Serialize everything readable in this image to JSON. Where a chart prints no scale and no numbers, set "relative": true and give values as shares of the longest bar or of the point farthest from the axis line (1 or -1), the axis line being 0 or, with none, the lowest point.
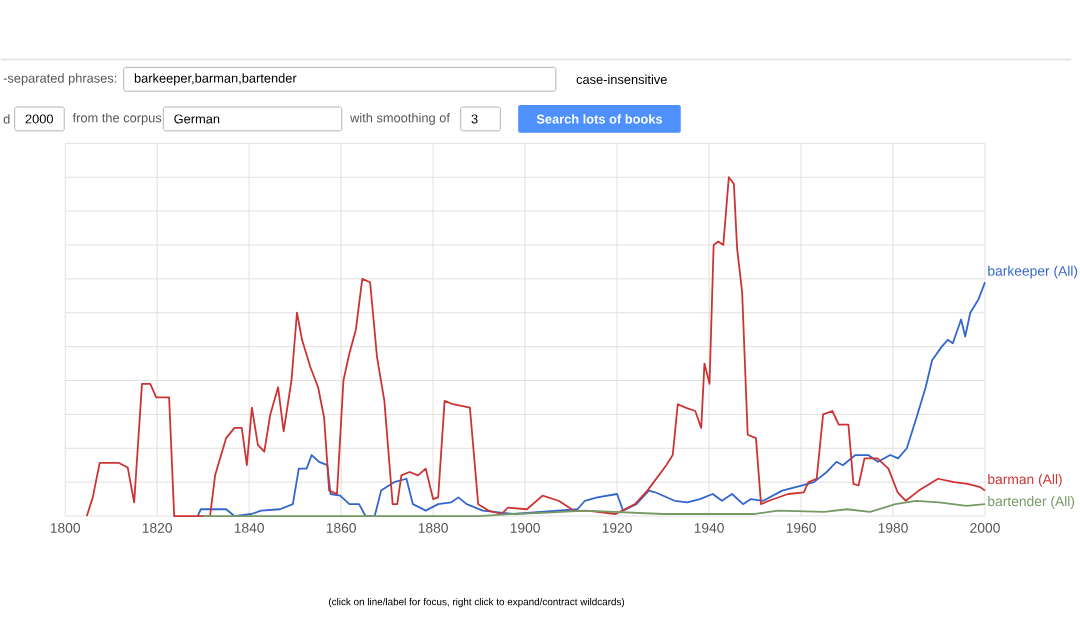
{
  "chart_data": {
    "type": "line",
    "relative": true,
    "grid": true,
    "xlim": [
      1800,
      2000
    ],
    "xticks": [
      1800,
      1820,
      1840,
      1860,
      1880,
      1900,
      1920,
      1940,
      1960,
      1980,
      2000
    ],
    "annotations": [
      "-separated phrases:",
      "barkeeper,barman,bartender",
      "case-insensitive",
      "d",
      "2000",
      "from the corpus",
      "German",
      "with smoothing of",
      "3",
      "Search lots of books",
      "(click on line/label for focus, right click to expand/contract wildcards)"
    ],
    "series": [
      {
        "name": "barkeeper (All)",
        "color": "#3366cc",
        "x": [
          1828.8,
          1829.5,
          1835,
          1836.8,
          1840.5,
          1842.6,
          1846.7,
          1849.5,
          1850.8,
          1852.5,
          1853.6,
          1855.2,
          1857,
          1857.7,
          1859.8,
          1861.8,
          1863.9,
          1865.3,
          1867.3,
          1868.7,
          1871.5,
          1874.2,
          1875.6,
          1878.4,
          1881.1,
          1883.9,
          1885.5,
          1887.3,
          1890.8,
          1897.6,
          1911.4,
          1913,
          1915.7,
          1920,
          1921.3,
          1924.2,
          1926.9,
          1928.3,
          1932.5,
          1935.3,
          1938,
          1940.8,
          1942.8,
          1945,
          1947.4,
          1949.1,
          1951.8,
          1955.9,
          1960.1,
          1962.8,
          1965.6,
          1967.7,
          1969.1,
          1971.8,
          1974.6,
          1976.7,
          1979.4,
          1981.1,
          1983,
          1985.1,
          1987.1,
          1988.5,
          1990.6,
          1991.9,
          1993,
          1994.8,
          1995.7,
          1996.8,
          1998.6,
          2000
        ],
        "values": [
          0,
          0.02,
          0.02,
          0,
          0.006,
          0.016,
          0.02,
          0.035,
          0.14,
          0.14,
          0.18,
          0.16,
          0.15,
          0.065,
          0.06,
          0.035,
          0.035,
          0,
          0,
          0.075,
          0.1,
          0.11,
          0.035,
          0.016,
          0.035,
          0.04,
          0.055,
          0.035,
          0.016,
          0.006,
          0.02,
          0.045,
          0.055,
          0.065,
          0.016,
          0.035,
          0.075,
          0.07,
          0.045,
          0.04,
          0.05,
          0.065,
          0.045,
          0.065,
          0.035,
          0.05,
          0.045,
          0.075,
          0.09,
          0.1,
          0.13,
          0.16,
          0.15,
          0.18,
          0.18,
          0.16,
          0.18,
          0.17,
          0.2,
          0.29,
          0.38,
          0.46,
          0.5,
          0.52,
          0.51,
          0.58,
          0.53,
          0.6,
          0.64,
          0.69
        ]
      },
      {
        "name": "barman (All)",
        "color": "#cc3333",
        "x": [
          1804.7,
          1806,
          1807.5,
          1811.6,
          1813.6,
          1815,
          1816.7,
          1818.5,
          1819.8,
          1822.6,
          1823.7,
          1831.5,
          1832.6,
          1835,
          1836.8,
          1838.4,
          1839.5,
          1840.6,
          1841.9,
          1843.3,
          1844.6,
          1846.3,
          1847.5,
          1849.2,
          1850.4,
          1851.5,
          1853.3,
          1855,
          1856.3,
          1857.4,
          1859.1,
          1860.5,
          1861.8,
          1863.2,
          1864.6,
          1866.3,
          1867.8,
          1869.4,
          1871.2,
          1872.2,
          1873.1,
          1874.9,
          1876.7,
          1878.4,
          1880,
          1881.1,
          1882.5,
          1884.3,
          1888,
          1889.8,
          1892.2,
          1894.9,
          1896.3,
          1900.4,
          1903.8,
          1907.3,
          1910.7,
          1914,
          1919.7,
          1923.9,
          1926.6,
          1930.7,
          1932.1,
          1933.2,
          1934.9,
          1937,
          1938.3,
          1939,
          1940.1,
          1941,
          1942,
          1943.1,
          1944.3,
          1945.4,
          1946.1,
          1947.2,
          1948.4,
          1950.2,
          1951.3,
          1953,
          1957.2,
          1960.6,
          1961.6,
          1963.4,
          1964.8,
          1966.8,
          1968.2,
          1970.3,
          1971.4,
          1972.5,
          1973.8,
          1976.6,
          1979,
          1981,
          1982.8,
          1985.6,
          1989.8,
          1993.3,
          1996.2,
          1999,
          2000
        ],
        "values": [
          0,
          0.055,
          0.157,
          0.157,
          0.143,
          0.04,
          0.39,
          0.39,
          0.35,
          0.35,
          0,
          0,
          0.12,
          0.23,
          0.26,
          0.26,
          0.15,
          0.32,
          0.21,
          0.19,
          0.3,
          0.38,
          0.25,
          0.4,
          0.6,
          0.52,
          0.44,
          0.38,
          0.29,
          0.075,
          0.065,
          0.4,
          0.48,
          0.55,
          0.7,
          0.69,
          0.47,
          0.34,
          0.035,
          0.035,
          0.12,
          0.13,
          0.12,
          0.14,
          0.05,
          0.055,
          0.34,
          0.33,
          0.32,
          0.035,
          0.015,
          0.006,
          0.025,
          0.02,
          0.06,
          0.045,
          0.015,
          0.015,
          0.006,
          0.035,
          0.075,
          0.15,
          0.18,
          0.33,
          0.32,
          0.31,
          0.26,
          0.45,
          0.39,
          0.8,
          0.81,
          0.8,
          1,
          0.98,
          0.79,
          0.66,
          0.24,
          0.23,
          0.035,
          0.045,
          0.065,
          0.07,
          0.1,
          0.11,
          0.3,
          0.31,
          0.27,
          0.27,
          0.095,
          0.09,
          0.17,
          0.17,
          0.14,
          0.07,
          0.045,
          0.075,
          0.11,
          0.1,
          0.095,
          0.085,
          0.075
        ]
      },
      {
        "name": "bartender (All)",
        "color": "#779966",
        "x": [
          1830,
          1890,
          1897,
          1905,
          1913,
          1930,
          1950,
          1955,
          1965,
          1970,
          1975,
          1980.5,
          1985,
          1990,
          1996,
          2000
        ],
        "values": [
          0,
          0,
          0.006,
          0.01,
          0.016,
          0.006,
          0.006,
          0.016,
          0.012,
          0.02,
          0.012,
          0.035,
          0.045,
          0.04,
          0.03,
          0.035
        ]
      }
    ]
  }
}
